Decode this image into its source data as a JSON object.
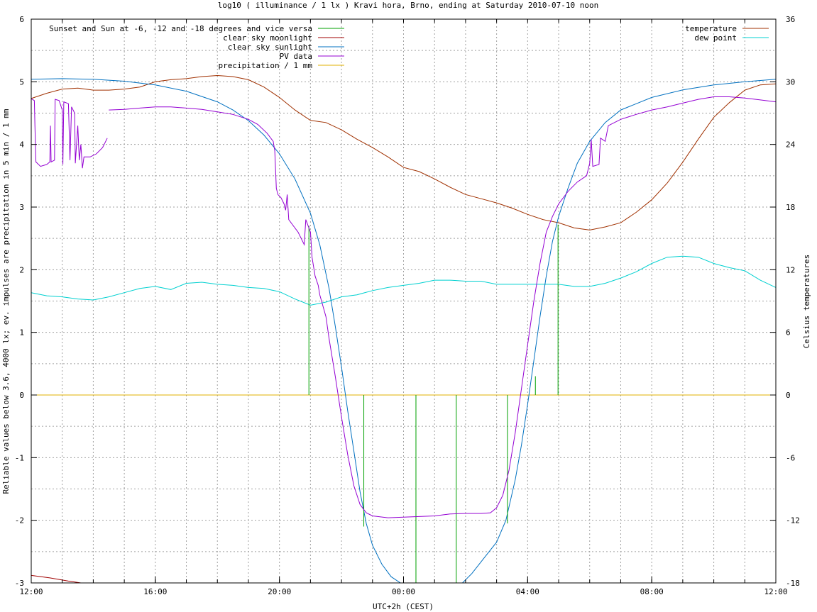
{
  "chart_data": {
    "type": "line",
    "title": "log10 ( illuminance / 1 lx ) Kravi hora, Brno, ending at Saturday 2010-07-10 noon",
    "xlabel": "UTC+2h (CEST)",
    "ylabel": "Reliable values below 3.6, 4000 lx; ev. impulses are precipitation in 5 min / 1 mm",
    "y2label": "Celsius temperatures",
    "x_unit": "hours since 12:00 local (CEST)",
    "xlim": [
      0,
      24
    ],
    "ylim": [
      -3,
      6
    ],
    "y2lim": [
      -18,
      36
    ],
    "grid": true,
    "legend_left_placement": "top-left",
    "legend_right_placement": "top-right",
    "x_ticks": [
      {
        "value": 0,
        "label": "12:00"
      },
      {
        "value": 4,
        "label": "16:00"
      },
      {
        "value": 8,
        "label": "20:00"
      },
      {
        "value": 12,
        "label": "00:00"
      },
      {
        "value": 16,
        "label": "04:00"
      },
      {
        "value": 20,
        "label": "08:00"
      },
      {
        "value": 24,
        "label": "12:00"
      }
    ],
    "y_ticks": [
      "-3",
      "-2",
      "-1",
      "0",
      "1",
      "2",
      "3",
      "4",
      "5",
      "6"
    ],
    "y2_ticks": [
      "-18",
      "-12",
      "-6",
      "0",
      "6",
      "12",
      "18",
      "24",
      "30",
      "36"
    ],
    "series": [
      {
        "name": "Sunset and Sun at -6, -12 and -18 degrees and vice versa",
        "axis": "left",
        "style": "impulses",
        "color": "#00a000",
        "points": [
          [
            8.95,
            2.7
          ],
          [
            9.72,
            0.0
          ],
          [
            10.72,
            -2.1
          ],
          [
            12.4,
            -3.0
          ],
          [
            13.7,
            -3.0
          ],
          [
            15.35,
            -2.05
          ],
          [
            16.25,
            0.3
          ],
          [
            16.98,
            2.72
          ]
        ]
      },
      {
        "name": "clear sky moonlight",
        "axis": "left",
        "style": "line",
        "color": "#a00000",
        "points": [
          [
            0,
            -2.88
          ],
          [
            0.6,
            -2.92
          ],
          [
            1.2,
            -2.97
          ],
          [
            1.6,
            -3.0
          ]
        ]
      },
      {
        "name": "clear sky sunlight",
        "axis": "left",
        "style": "line",
        "color": "#0070c0",
        "points": [
          [
            0,
            5.04
          ],
          [
            1,
            5.05
          ],
          [
            2,
            5.04
          ],
          [
            3,
            5.01
          ],
          [
            4,
            4.95
          ],
          [
            5,
            4.85
          ],
          [
            6,
            4.68
          ],
          [
            6.5,
            4.55
          ],
          [
            7,
            4.38
          ],
          [
            7.5,
            4.15
          ],
          [
            8,
            3.85
          ],
          [
            8.5,
            3.45
          ],
          [
            9,
            2.9
          ],
          [
            9.3,
            2.4
          ],
          [
            9.6,
            1.7
          ],
          [
            9.8,
            1.1
          ],
          [
            10,
            0.45
          ],
          [
            10.2,
            -0.25
          ],
          [
            10.4,
            -0.9
          ],
          [
            10.6,
            -1.55
          ],
          [
            10.8,
            -2.05
          ],
          [
            11,
            -2.4
          ],
          [
            11.3,
            -2.7
          ],
          [
            11.6,
            -2.9
          ],
          [
            11.9,
            -3.0
          ],
          [
            13.9,
            -3.0
          ],
          [
            14.2,
            -2.85
          ],
          [
            14.6,
            -2.6
          ],
          [
            15,
            -2.35
          ],
          [
            15.3,
            -2.0
          ],
          [
            15.6,
            -1.35
          ],
          [
            15.8,
            -0.8
          ],
          [
            16,
            -0.15
          ],
          [
            16.2,
            0.55
          ],
          [
            16.4,
            1.25
          ],
          [
            16.6,
            1.9
          ],
          [
            16.8,
            2.45
          ],
          [
            17,
            2.85
          ],
          [
            17.3,
            3.3
          ],
          [
            17.6,
            3.7
          ],
          [
            18,
            4.05
          ],
          [
            18.5,
            4.35
          ],
          [
            19,
            4.55
          ],
          [
            20,
            4.75
          ],
          [
            21,
            4.87
          ],
          [
            22,
            4.95
          ],
          [
            23,
            5.0
          ],
          [
            24,
            5.04
          ]
        ]
      },
      {
        "name": "PV data",
        "axis": "left",
        "style": "line",
        "color": "#9400d3",
        "points": [
          [
            0,
            4.73
          ],
          [
            0.1,
            4.7
          ],
          [
            0.12,
            4.3
          ],
          [
            0.15,
            3.72
          ],
          [
            0.3,
            3.65
          ],
          [
            0.5,
            3.68
          ],
          [
            0.6,
            3.72
          ],
          [
            0.62,
            4.3
          ],
          [
            0.64,
            3.72
          ],
          [
            0.75,
            3.75
          ],
          [
            0.77,
            4.72
          ],
          [
            0.9,
            4.7
          ],
          [
            1.0,
            4.55
          ],
          [
            1.02,
            3.68
          ],
          [
            1.05,
            4.68
          ],
          [
            1.2,
            4.65
          ],
          [
            1.25,
            3.75
          ],
          [
            1.3,
            4.6
          ],
          [
            1.4,
            4.5
          ],
          [
            1.42,
            3.7
          ],
          [
            1.5,
            4.3
          ],
          [
            1.55,
            3.75
          ],
          [
            1.6,
            4.0
          ],
          [
            1.65,
            3.62
          ],
          [
            1.7,
            3.8
          ],
          [
            1.9,
            3.8
          ],
          [
            2.1,
            3.85
          ],
          [
            2.3,
            3.95
          ],
          [
            2.4,
            4.05
          ],
          [
            2.45,
            4.1
          ],
          [
            null,
            null
          ],
          [
            2.5,
            4.55
          ],
          [
            3,
            4.56
          ],
          [
            3.5,
            4.58
          ],
          [
            4,
            4.6
          ],
          [
            4.5,
            4.6
          ],
          [
            5,
            4.58
          ],
          [
            5.5,
            4.56
          ],
          [
            6,
            4.52
          ],
          [
            6.5,
            4.48
          ],
          [
            7,
            4.4
          ],
          [
            7.3,
            4.32
          ],
          [
            7.6,
            4.18
          ],
          [
            7.8,
            4.05
          ],
          [
            7.85,
            3.9
          ],
          [
            7.9,
            3.3
          ],
          [
            7.95,
            3.2
          ],
          [
            8.05,
            3.15
          ],
          [
            8.15,
            3.05
          ],
          [
            8.2,
            2.95
          ],
          [
            8.25,
            3.2
          ],
          [
            8.3,
            2.8
          ],
          [
            8.45,
            2.7
          ],
          [
            8.6,
            2.6
          ],
          [
            8.8,
            2.4
          ],
          [
            8.85,
            2.8
          ],
          [
            9.0,
            2.6
          ],
          [
            9.05,
            2.2
          ],
          [
            9.15,
            1.9
          ],
          [
            9.25,
            1.75
          ],
          [
            9.3,
            1.6
          ],
          [
            9.5,
            1.25
          ],
          [
            9.6,
            0.9
          ],
          [
            9.8,
            0.3
          ],
          [
            10,
            -0.35
          ],
          [
            10.2,
            -0.95
          ],
          [
            10.4,
            -1.45
          ],
          [
            10.6,
            -1.75
          ],
          [
            10.8,
            -1.88
          ],
          [
            11,
            -1.93
          ],
          [
            11.5,
            -1.96
          ],
          [
            12,
            -1.95
          ],
          [
            12.5,
            -1.94
          ],
          [
            13,
            -1.93
          ],
          [
            13.5,
            -1.9
          ],
          [
            14,
            -1.89
          ],
          [
            14.5,
            -1.89
          ],
          [
            14.8,
            -1.88
          ],
          [
            15,
            -1.8
          ],
          [
            15.2,
            -1.6
          ],
          [
            15.4,
            -1.2
          ],
          [
            15.6,
            -0.6
          ],
          [
            15.8,
            0.1
          ],
          [
            16,
            0.8
          ],
          [
            16.2,
            1.5
          ],
          [
            16.4,
            2.1
          ],
          [
            16.6,
            2.6
          ],
          [
            16.8,
            2.85
          ],
          [
            17,
            3.05
          ],
          [
            17.3,
            3.25
          ],
          [
            17.6,
            3.4
          ],
          [
            17.9,
            3.5
          ],
          [
            18.0,
            3.7
          ],
          [
            18.05,
            4.08
          ],
          [
            18.1,
            3.65
          ],
          [
            18.3,
            3.68
          ],
          [
            18.35,
            4.1
          ],
          [
            18.5,
            4.05
          ],
          [
            18.6,
            4.3
          ],
          [
            19,
            4.4
          ],
          [
            19.5,
            4.48
          ],
          [
            20,
            4.55
          ],
          [
            20.5,
            4.6
          ],
          [
            21,
            4.66
          ],
          [
            21.5,
            4.72
          ],
          [
            22,
            4.76
          ],
          [
            22.5,
            4.76
          ],
          [
            23,
            4.74
          ],
          [
            23.5,
            4.71
          ],
          [
            24,
            4.68
          ]
        ]
      },
      {
        "name": "precipitation / 1 mm",
        "axis": "left",
        "style": "line",
        "color": "#e0b000",
        "points": [
          [
            0,
            0
          ],
          [
            24,
            0
          ]
        ]
      },
      {
        "name": "temperature",
        "axis": "right",
        "style": "line",
        "color": "#a03000",
        "points": [
          [
            0,
            28.4
          ],
          [
            0.5,
            28.9
          ],
          [
            1,
            29.3
          ],
          [
            1.5,
            29.4
          ],
          [
            2,
            29.2
          ],
          [
            2.5,
            29.2
          ],
          [
            3,
            29.3
          ],
          [
            3.5,
            29.5
          ],
          [
            4,
            30.0
          ],
          [
            4.5,
            30.2
          ],
          [
            5,
            30.3
          ],
          [
            5.5,
            30.5
          ],
          [
            6,
            30.6
          ],
          [
            6.5,
            30.5
          ],
          [
            7,
            30.2
          ],
          [
            7.5,
            29.5
          ],
          [
            8,
            28.5
          ],
          [
            8.5,
            27.3
          ],
          [
            9,
            26.3
          ],
          [
            9.5,
            26.1
          ],
          [
            10,
            25.4
          ],
          [
            10.5,
            24.5
          ],
          [
            11,
            23.7
          ],
          [
            11.5,
            22.8
          ],
          [
            12,
            21.8
          ],
          [
            12.5,
            21.4
          ],
          [
            13,
            20.7
          ],
          [
            13.5,
            19.9
          ],
          [
            14,
            19.2
          ],
          [
            14.5,
            18.8
          ],
          [
            15,
            18.4
          ],
          [
            15.5,
            17.9
          ],
          [
            16,
            17.3
          ],
          [
            16.5,
            16.8
          ],
          [
            17,
            16.5
          ],
          [
            17.5,
            16.0
          ],
          [
            18,
            15.8
          ],
          [
            18.5,
            16.1
          ],
          [
            19,
            16.5
          ],
          [
            19.5,
            17.5
          ],
          [
            20,
            18.7
          ],
          [
            20.5,
            20.3
          ],
          [
            21,
            22.3
          ],
          [
            21.5,
            24.5
          ],
          [
            22,
            26.6
          ],
          [
            22.5,
            28.0
          ],
          [
            23,
            29.2
          ],
          [
            23.5,
            29.7
          ],
          [
            24,
            29.8
          ]
        ]
      },
      {
        "name": "dew point",
        "axis": "right",
        "style": "line",
        "color": "#00d0d0",
        "points": [
          [
            0,
            9.8
          ],
          [
            0.5,
            9.5
          ],
          [
            1,
            9.4
          ],
          [
            1.5,
            9.2
          ],
          [
            2,
            9.1
          ],
          [
            2.5,
            9.4
          ],
          [
            3,
            9.8
          ],
          [
            3.5,
            10.2
          ],
          [
            4,
            10.4
          ],
          [
            4.5,
            10.1
          ],
          [
            5,
            10.7
          ],
          [
            5.5,
            10.8
          ],
          [
            6,
            10.6
          ],
          [
            6.5,
            10.5
          ],
          [
            7,
            10.3
          ],
          [
            7.5,
            10.2
          ],
          [
            8,
            9.9
          ],
          [
            8.5,
            9.2
          ],
          [
            9,
            8.6
          ],
          [
            9.5,
            8.9
          ],
          [
            10,
            9.4
          ],
          [
            10.5,
            9.6
          ],
          [
            11,
            10.0
          ],
          [
            11.5,
            10.3
          ],
          [
            12,
            10.5
          ],
          [
            12.5,
            10.7
          ],
          [
            13,
            11.0
          ],
          [
            13.5,
            11.0
          ],
          [
            14,
            10.9
          ],
          [
            14.5,
            10.9
          ],
          [
            15,
            10.6
          ],
          [
            15.5,
            10.6
          ],
          [
            16,
            10.6
          ],
          [
            16.5,
            10.6
          ],
          [
            17,
            10.6
          ],
          [
            17.5,
            10.4
          ],
          [
            18,
            10.4
          ],
          [
            18.5,
            10.7
          ],
          [
            19,
            11.2
          ],
          [
            19.5,
            11.8
          ],
          [
            20,
            12.6
          ],
          [
            20.5,
            13.2
          ],
          [
            21,
            13.3
          ],
          [
            21.5,
            13.2
          ],
          [
            22,
            12.6
          ],
          [
            22.5,
            12.2
          ],
          [
            23,
            11.9
          ],
          [
            23.5,
            11.0
          ],
          [
            24,
            10.3
          ]
        ]
      }
    ]
  }
}
